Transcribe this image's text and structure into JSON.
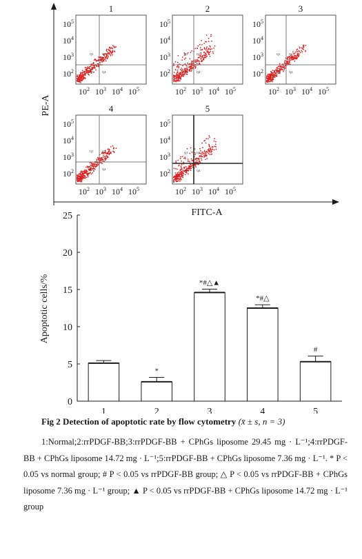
{
  "flow_panels": {
    "y_axis_label": "PE-A",
    "x_axis_label": "FITC-A",
    "axis_ticks": [
      "10",
      "10",
      "10",
      "10"
    ],
    "tick_exponents": [
      "2",
      "3",
      "4",
      "5"
    ],
    "quadrant_labels": [
      "Q1",
      "Q2",
      "Q3",
      "Q4"
    ],
    "panel_titles": [
      "1",
      "2",
      "3",
      "4",
      "5"
    ],
    "dot_color": "#e02020"
  },
  "chart_data": {
    "type": "bar",
    "categories": [
      "1",
      "2",
      "3",
      "4",
      "5"
    ],
    "values": [
      5.1,
      2.6,
      14.6,
      12.5,
      5.3
    ],
    "errors": [
      0.35,
      0.6,
      0.45,
      0.45,
      0.75
    ],
    "annotations": [
      "",
      "*",
      "*#△▲",
      "*#△",
      "#"
    ],
    "ylabel": "Apoptotic cells/%",
    "xlabel": "",
    "ylim": [
      0,
      25
    ],
    "yticks": [
      0,
      5,
      10,
      15,
      20,
      25
    ],
    "bar_fill": "#ffffff",
    "bar_stroke": "#1a1a1a"
  },
  "caption": {
    "title": "Fig 2   Detection of apoptotic rate by flow cytometry",
    "stats": "(x̄ ± s, n = 3)",
    "legend": "1:Normal;2:rrPDGF-BB;3:rrPDGF-BB + CPhGs liposome 29.45 mg · L⁻¹;4:rrPDGF-BB + CPhGs liposome 14.72 mg · L⁻¹;5:rrPDGF-BB + CPhGs liposome 7.36 mg · L⁻¹. * P < 0.05 vs normal group; # P < 0.05 vs rrPDGF-BB group; △ P < 0.05 vs rrPDGF-BB + CPhGs liposome 7.36 mg · L⁻¹ group; ▲ P < 0.05 vs rrPDGF-BB + CPhGs liposome 14.72 mg · L⁻¹ group"
  }
}
